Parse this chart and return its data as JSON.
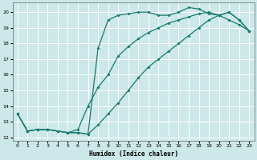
{
  "xlabel": "Humidex (Indice chaleur)",
  "bg_color": "#cce8e8",
  "grid_color": "#ffffff",
  "line_color": "#1a7a6e",
  "xlim": [
    -0.5,
    23.5
  ],
  "ylim": [
    11.8,
    20.6
  ],
  "xticks": [
    0,
    1,
    2,
    3,
    4,
    5,
    6,
    7,
    8,
    9,
    10,
    11,
    12,
    13,
    14,
    15,
    16,
    17,
    18,
    19,
    20,
    21,
    22,
    23
  ],
  "yticks": [
    12,
    13,
    14,
    15,
    16,
    17,
    18,
    19,
    20
  ],
  "line1_x": [
    0,
    1,
    2,
    3,
    4,
    5,
    6,
    7,
    8,
    9,
    10,
    11,
    12,
    13,
    14,
    15,
    16,
    17,
    18,
    19,
    20,
    21,
    22,
    23
  ],
  "line1_y": [
    13.5,
    12.4,
    12.5,
    12.5,
    12.4,
    12.3,
    12.3,
    12.2,
    17.7,
    19.5,
    19.8,
    19.9,
    20.0,
    20.0,
    19.8,
    19.8,
    20.0,
    20.3,
    20.2,
    19.9,
    19.8,
    20.0,
    19.5,
    18.8
  ],
  "line2_x": [
    0,
    1,
    2,
    3,
    4,
    5,
    6,
    7,
    8,
    9,
    10,
    11,
    12,
    13,
    14,
    15,
    16,
    17,
    18,
    19,
    20,
    21,
    22,
    23
  ],
  "line2_y": [
    13.5,
    12.4,
    12.5,
    12.5,
    12.4,
    12.3,
    12.5,
    14.0,
    15.2,
    16.0,
    17.2,
    17.8,
    18.3,
    18.7,
    19.0,
    19.3,
    19.5,
    19.7,
    19.9,
    20.0,
    19.8,
    19.5,
    19.2,
    18.8
  ],
  "line3_x": [
    0,
    1,
    2,
    3,
    4,
    5,
    6,
    7,
    8,
    9,
    10,
    11,
    12,
    13,
    14,
    15,
    16,
    17,
    18,
    19,
    20,
    21,
    22,
    23
  ],
  "line3_y": [
    13.5,
    12.4,
    12.5,
    12.5,
    12.4,
    12.3,
    12.3,
    12.2,
    12.8,
    13.5,
    14.2,
    15.0,
    15.8,
    16.5,
    17.0,
    17.5,
    18.0,
    18.5,
    19.0,
    19.5,
    19.8,
    20.0,
    19.5,
    18.8
  ]
}
